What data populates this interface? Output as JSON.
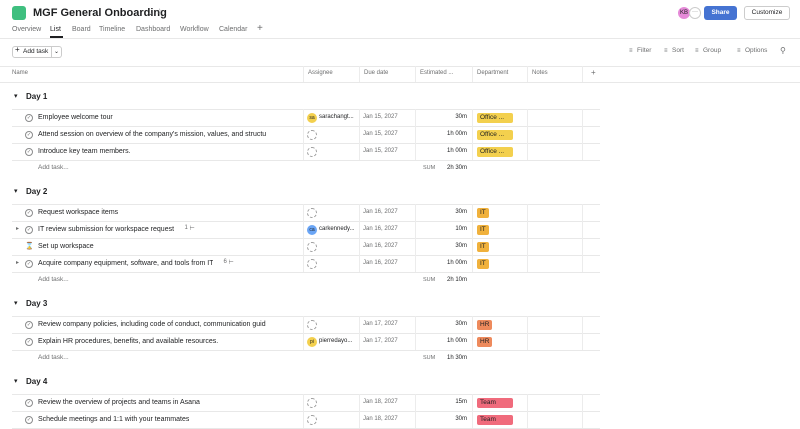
{
  "header": {
    "title": "MGF General Onboarding",
    "tabs": [
      "Overview",
      "List",
      "Board",
      "Timeline",
      "Dashboard",
      "Workflow",
      "Calendar"
    ],
    "active_tab": 1,
    "user_initials": "KB",
    "share": "Share",
    "customize": "Customize"
  },
  "toolbar": {
    "add_task": "Add task",
    "filter": "Filter",
    "sort": "Sort",
    "group": "Group",
    "options": "Options"
  },
  "columns": [
    "Name",
    "Assignee",
    "Due date",
    "Estimated ...",
    "Department",
    "Notes"
  ],
  "sections": [
    {
      "title": "Day 1",
      "tasks": [
        {
          "name": "Employee welcome tour",
          "assignee": {
            "initials": "sa",
            "name": "sarachangt..."
          },
          "due": "Jan 15, 2027",
          "estimate": "30m",
          "department": "Office ..."
        },
        {
          "name": "Attend session on overview of the company's mission, values, and structu",
          "assignee": null,
          "due": "Jan 15, 2027",
          "estimate": "1h 00m",
          "department": "Office ..."
        },
        {
          "name": "Introduce key team members.",
          "assignee": null,
          "due": "Jan 15, 2027",
          "estimate": "1h 00m",
          "department": "Office ..."
        }
      ],
      "add_task": "Add task...",
      "sum_label": "SUM",
      "sum": "2h 30m"
    },
    {
      "title": "Day 2",
      "tasks": [
        {
          "name": "Request workspace items",
          "assignee": null,
          "due": "Jan 16, 2027",
          "estimate": "30m",
          "department": "IT"
        },
        {
          "name": "IT review submission for workspace request",
          "subtasks": "1",
          "assignee": {
            "initials": "ca",
            "name": "carkennedy..."
          },
          "due": "Jan 16, 2027",
          "estimate": "10m",
          "department": "IT"
        },
        {
          "name": "Set up workspace",
          "icon": "hourglass",
          "assignee": null,
          "due": "Jan 16, 2027",
          "estimate": "30m",
          "department": "IT"
        },
        {
          "name": "Acquire company equipment, software, and tools from IT",
          "subtasks": "6",
          "assignee": null,
          "due": "Jan 16, 2027",
          "estimate": "1h 00m",
          "department": "IT"
        }
      ],
      "add_task": "Add task...",
      "sum_label": "SUM",
      "sum": "2h 10m"
    },
    {
      "title": "Day 3",
      "tasks": [
        {
          "name": "Review company policies, including code of conduct, communication guid",
          "assignee": null,
          "due": "Jan 17, 2027",
          "estimate": "30m",
          "department": "HR"
        },
        {
          "name": "Explain HR procedures, benefits, and available resources.",
          "assignee": {
            "initials": "pi",
            "name": "pierredayo..."
          },
          "due": "Jan 17, 2027",
          "estimate": "1h 00m",
          "department": "HR"
        }
      ],
      "add_task": "Add task...",
      "sum_label": "SUM",
      "sum": "1h 30m"
    },
    {
      "title": "Day 4",
      "tasks": [
        {
          "name": "Review the overview of projects and teams in Asana",
          "assignee": null,
          "due": "Jan 18, 2027",
          "estimate": "15m",
          "department": "Team"
        },
        {
          "name": "Schedule meetings and 1:1 with your teammates",
          "assignee": null,
          "due": "Jan 18, 2027",
          "estimate": "30m",
          "department": "Team"
        }
      ]
    }
  ],
  "department_colors": {
    "Office ...": "#f3d04e",
    "IT": "#f0b13c",
    "HR": "#ee8a5c",
    "Team": "#f06b7c"
  },
  "avatar_colors": {
    "sa": "#f3d04e",
    "ca": "#6aa5f5",
    "pi": "#f3d04e",
    "KB": "#e58ad8"
  }
}
